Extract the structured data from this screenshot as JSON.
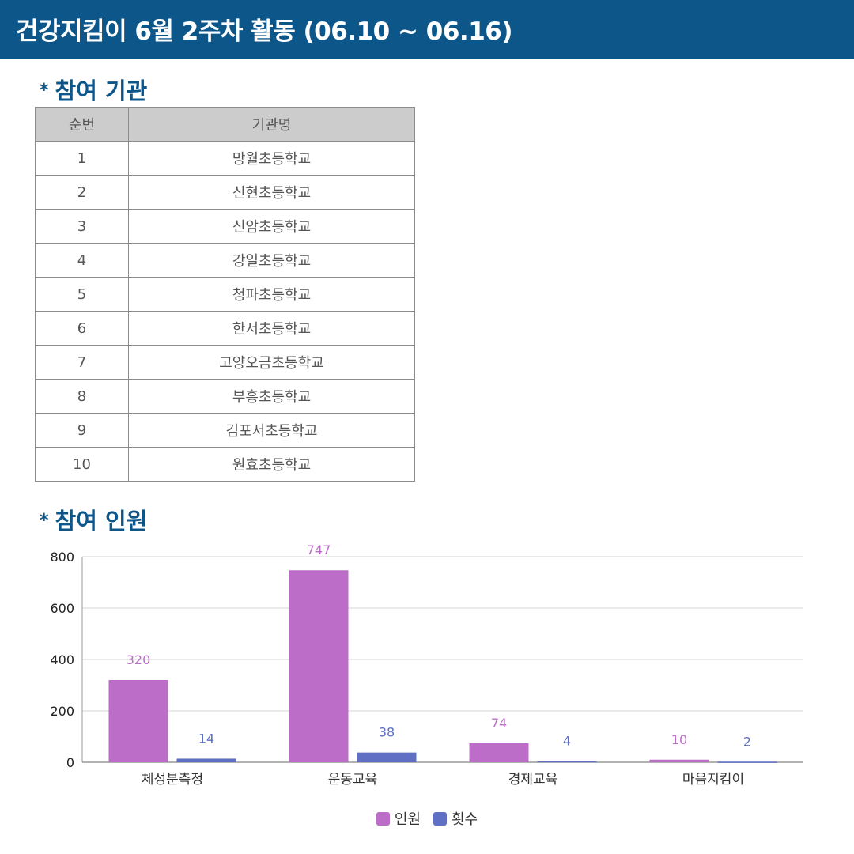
{
  "header": {
    "title": "건강지킴이 6월 2주차 활동 (06.10 ~ 06.16)"
  },
  "colors": {
    "header_bg": "#0d568a",
    "section_title": "#0d568a",
    "series_people": "#bb6dc8",
    "series_count": "#5e6fc4"
  },
  "section_institutions": {
    "bullet": "*",
    "title": "참여 기관"
  },
  "table": {
    "headers": [
      "순번",
      "기관명"
    ],
    "rows": [
      [
        "1",
        "망월초등학교"
      ],
      [
        "2",
        "신현초등학교"
      ],
      [
        "3",
        "신암초등학교"
      ],
      [
        "4",
        "강일초등학교"
      ],
      [
        "5",
        "청파초등학교"
      ],
      [
        "6",
        "한서초등학교"
      ],
      [
        "7",
        "고양오금초등학교"
      ],
      [
        "8",
        "부흥초등학교"
      ],
      [
        "9",
        "김포서초등학교"
      ],
      [
        "10",
        "원효초등학교"
      ]
    ]
  },
  "section_participants": {
    "bullet": "*",
    "title": "참여 인원"
  },
  "chart_data": {
    "type": "bar",
    "categories": [
      "체성분측정",
      "운동교육",
      "경제교육",
      "마음지킴이"
    ],
    "series": [
      {
        "name": "인원",
        "values": [
          320,
          747,
          74,
          10
        ],
        "color": "#bb6dc8"
      },
      {
        "name": "횟수",
        "values": [
          14,
          38,
          4,
          2
        ],
        "color": "#5e6fc4"
      }
    ],
    "ylim": [
      0,
      800
    ],
    "yticks": [
      0,
      200,
      400,
      600,
      800
    ],
    "grid": true,
    "legend": "bottom-center"
  }
}
